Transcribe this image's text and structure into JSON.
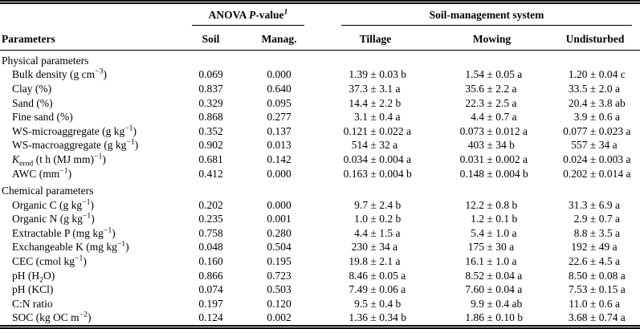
{
  "table": {
    "header": {
      "parameters_label": "Parameters",
      "anova_group_html": "ANOVA <i>P</i>-value<sup><i>1</i></sup>",
      "anova_cols": [
        "Soil",
        "Manag."
      ],
      "system_group": "Soil-management system",
      "system_cols": [
        "Tillage",
        "Mowing",
        "Undisturbed"
      ]
    },
    "sections": [
      {
        "title": "Physical parameters",
        "rows": [
          {
            "param_html": "Bulk density (g cm<sup>−3</sup>)",
            "soil": "0.069",
            "manag": "0.000",
            "tillage": "1.39 ± 0.03 b",
            "mowing": "1.54 ± 0.05 a",
            "undisturbed": "1.20 ± 0.04 c"
          },
          {
            "param_html": "Clay (%)",
            "soil": "0.837",
            "manag": "0.640",
            "tillage": "37.3 ± 3.1 a",
            "mowing": "35.6 ± 2.2 a",
            "undisturbed": "33.5 ± 2.0 a"
          },
          {
            "param_html": "Sand (%)",
            "soil": "0.329",
            "manag": "0.095",
            "tillage": "14.4 ± 2.2 b",
            "mowing": "22.3 ± 2.5 a",
            "undisturbed": "20.4 ± 3.8 ab"
          },
          {
            "param_html": "Fine sand (%)",
            "soil": "0.868",
            "manag": "0.277",
            "tillage": "3.1 ± 0.4 a",
            "mowing": "4.4 ± 0.7 a",
            "undisturbed": "3.9 ± 0.6 a"
          },
          {
            "param_html": "WS-microaggregate (g kg<sup>−1</sup>)",
            "soil": "0.352",
            "manag": "0.137",
            "tillage": "0.121 ± 0.022 a",
            "mowing": "0.073 ± 0.012 a",
            "undisturbed": "0.077 ± 0.023 a"
          },
          {
            "param_html": "WS-macroaggregate (g kg<sup>−1</sup>)",
            "soil": "0.902",
            "manag": "0.013",
            "tillage": "514 ± 32 a",
            "mowing": "403 ± 34 b",
            "undisturbed": "557 ± 34 a"
          },
          {
            "param_html": "<i>K</i><sub>erod</sub> (t h (MJ mm)<sup>−1</sup>)",
            "soil": "0.681",
            "manag": "0.142",
            "tillage": "0.034 ± 0.004 a",
            "mowing": "0.031 ± 0.002 a",
            "undisturbed": "0.024 ± 0.003 a"
          },
          {
            "param_html": "AWC (mm<sup>−1</sup>)",
            "soil": "0.412",
            "manag": "0.000",
            "tillage": "0.163 ± 0.004 b",
            "mowing": "0.148 ± 0.004 b",
            "undisturbed": "0.202 ± 0.014 a"
          }
        ]
      },
      {
        "title": "Chemical parameters",
        "rows": [
          {
            "param_html": "Organic C (g kg<sup>−1</sup>)",
            "soil": "0.202",
            "manag": "0.000",
            "tillage": "9.7 ± 2.4 b",
            "mowing": "12.2 ± 0.8 b",
            "undisturbed": "31.3 ± 6.9 a"
          },
          {
            "param_html": "Organic N (g kg<sup>−1</sup>)",
            "soil": "0.235",
            "manag": "0.001",
            "tillage": "1.0 ± 0.2 b",
            "mowing": "1.2 ± 0.1 b",
            "undisturbed": "2.9 ± 0.7 a"
          },
          {
            "param_html": "Extractable P (mg kg<sup>−1</sup>)",
            "soil": "0.758",
            "manag": "0.280",
            "tillage": "4.4 ± 1.5 a",
            "mowing": "5.4 ± 1.0 a",
            "undisturbed": "8.8 ± 3.5 a"
          },
          {
            "param_html": "Exchangeable K (mg kg<sup>−1</sup>)",
            "soil": "0.048",
            "manag": "0.504",
            "tillage": "230 ± 34 a",
            "mowing": "175 ± 30 a",
            "undisturbed": "192 ± 49 a"
          },
          {
            "param_html": "CEC (cmol kg<sup>−1</sup>)",
            "soil": "0.160",
            "manag": "0.195",
            "tillage": "19.8 ± 2.1 a",
            "mowing": "16.1 ± 1.0 a",
            "undisturbed": "22.6 ± 4.5 a"
          },
          {
            "param_html": "pH (H<sub>2</sub>O)",
            "soil": "0.866",
            "manag": "0.723",
            "tillage": "8.46 ± 0.05 a",
            "mowing": "8.52 ± 0.04 a",
            "undisturbed": "8.50 ± 0.08 a"
          },
          {
            "param_html": "pH (KCl)",
            "soil": "0.074",
            "manag": "0.503",
            "tillage": "7.49 ± 0.06 a",
            "mowing": "7.60 ± 0.04 a",
            "undisturbed": "7.53 ± 0.15 a"
          },
          {
            "param_html": "C:N ratio",
            "soil": "0.197",
            "manag": "0.120",
            "tillage": "9.5 ± 0.4 b",
            "mowing": "9.9 ± 0.4 ab",
            "undisturbed": "11.0 ± 0.6 a"
          },
          {
            "param_html": "SOC (kg OC m<sup>−2</sup>)",
            "soil": "0.124",
            "manag": "0.002",
            "tillage": "1.36 ± 0.34 b",
            "mowing": "1.86 ± 0.10 b",
            "undisturbed": "3.68 ± 0.74 a"
          }
        ]
      }
    ]
  }
}
